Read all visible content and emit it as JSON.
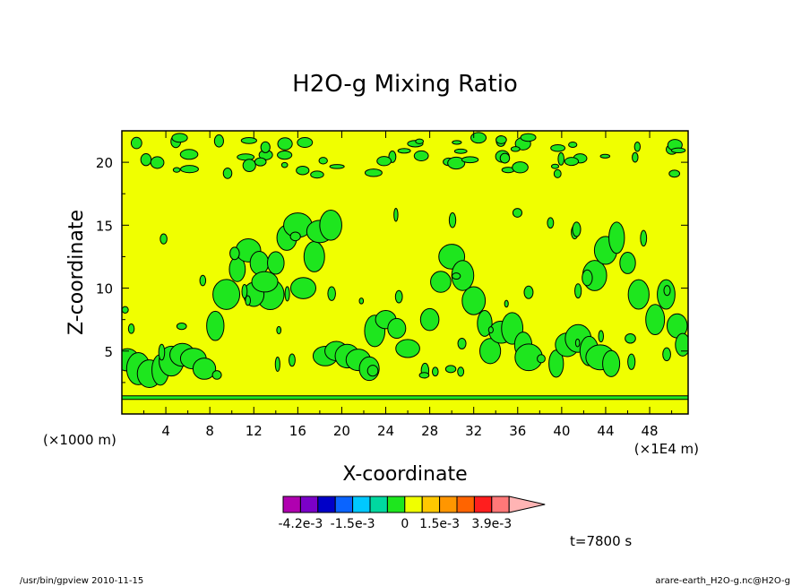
{
  "chart_data": {
    "type": "heatmap",
    "title": "H2O-g Mixing Ratio",
    "xlabel": "X-coordinate",
    "ylabel": "Z-coordinate",
    "x_unit_note": "(×1E4 m)",
    "y_unit_note": "(×1000 m)",
    "x_ticks": [
      "4",
      "8",
      "12",
      "16",
      "20",
      "24",
      "28",
      "32",
      "36",
      "40",
      "44",
      "48"
    ],
    "y_ticks": [
      "5",
      "10",
      "15",
      "20"
    ],
    "xlim": [
      0,
      51.5
    ],
    "ylim": [
      0,
      22.5
    ],
    "time_label": "t=7800 s",
    "colorbar": {
      "labels": [
        "-4.2e-3",
        "-1.5e-3",
        "0",
        "1.5e-3",
        "3.9e-3"
      ],
      "colors": [
        "#b000b0",
        "#7b00c8",
        "#0000c8",
        "#0a64ff",
        "#00c8ff",
        "#00d8a0",
        "#1ee61e",
        "#f0ff00",
        "#ffc800",
        "#ff9600",
        "#ff6400",
        "#ff1e1e",
        "#ff7878",
        "#ffb4b4"
      ]
    },
    "background_color": "#f0ff00",
    "anomaly_color": "#1ee61e",
    "bottom_band_z": 1.3,
    "regions": [
      {
        "x": [
          0.5,
          1.5,
          2.5,
          3.5,
          4.5,
          5.5,
          6.5,
          7.5
        ],
        "z": [
          4.3,
          3.6,
          3.2,
          3.5,
          4.2,
          4.7,
          4.4,
          3.6
        ]
      },
      {
        "x": [
          8.5,
          9.5,
          10.5,
          11.5,
          12.5,
          13.5
        ],
        "z": [
          7.0,
          9.5,
          11.5,
          13.0,
          12.0,
          9.5
        ]
      },
      {
        "x": [
          12.0,
          13.0,
          14.0,
          15.0,
          16.0
        ],
        "z": [
          9.5,
          10.5,
          12.0,
          14.0,
          15.0
        ]
      },
      {
        "x": [
          16.5,
          17.5,
          18.0,
          19.0
        ],
        "z": [
          10.0,
          12.5,
          14.5,
          15.0
        ]
      },
      {
        "x": [
          18.5,
          19.5,
          20.5,
          21.5,
          22.5
        ],
        "z": [
          4.6,
          5.0,
          4.6,
          4.3,
          3.6
        ]
      },
      {
        "x": [
          23.0,
          24.0,
          25.0,
          26.0
        ],
        "z": [
          6.6,
          7.5,
          6.8,
          5.2
        ]
      },
      {
        "x": [
          28.0,
          29.0,
          30.0,
          31.0,
          32.0,
          33.0
        ],
        "z": [
          7.5,
          10.5,
          12.5,
          11.0,
          9.0,
          7.2
        ]
      },
      {
        "x": [
          33.5,
          34.5,
          35.5,
          36.5,
          37.0
        ],
        "z": [
          5.0,
          6.5,
          6.8,
          5.5,
          4.5
        ]
      },
      {
        "x": [
          39.5,
          40.5,
          41.5,
          42.5,
          43.5,
          44.5
        ],
        "z": [
          4.0,
          5.5,
          6.0,
          5.0,
          4.5,
          4.0
        ]
      },
      {
        "x": [
          43.0,
          44.0,
          45.0,
          46.0,
          47.0
        ],
        "z": [
          11.0,
          13.0,
          14.0,
          12.0,
          9.5
        ]
      },
      {
        "x": [
          48.5,
          49.5,
          50.5,
          51.0
        ],
        "z": [
          7.5,
          9.5,
          7.0,
          5.5
        ]
      }
    ],
    "footer_left": "/usr/bin/gpview   2010-11-15",
    "footer_right": "arare-earth_H2O-g.nc@H2O-g"
  }
}
